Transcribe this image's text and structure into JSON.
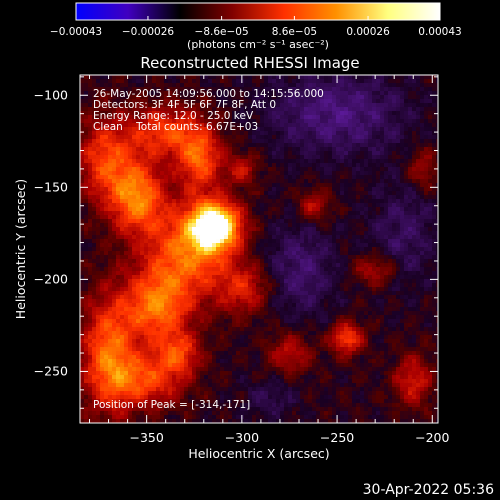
{
  "chart_data": {
    "type": "heatmap",
    "title": "Reconstructed RHESSI Image",
    "xlabel": "Heliocentric X (arcsec)",
    "ylabel": "Heliocentric Y (arcsec)",
    "xlim": [
      -385,
      -197
    ],
    "ylim": [
      -278,
      -89
    ],
    "x_ticks": [
      -350,
      -300,
      -250,
      -200
    ],
    "x_tick_labels": [
      "−350",
      "−300",
      "−250",
      "−200"
    ],
    "y_ticks": [
      -100,
      -150,
      -200,
      -250
    ],
    "y_tick_labels": [
      "−100",
      "−150",
      "−200",
      "−250"
    ],
    "colorbar": {
      "range": [
        -0.00043,
        0.00043
      ],
      "ticks": [
        -0.00043,
        -0.00026,
        -8.6e-05,
        8.6e-05,
        0.00026,
        0.00043
      ],
      "tick_labels": [
        "−0.00043",
        "−0.00026",
        "−8.6e−05",
        "8.6e−05",
        "0.00026",
        "0.00043"
      ],
      "unit_label": "(photons cm⁻² s⁻¹ asec⁻²)",
      "colors": [
        "#0000ff",
        "#4000c0",
        "#000000",
        "#800000",
        "#ff3000",
        "#ff9000",
        "#ffff80",
        "#ffffff"
      ]
    },
    "annotations": [
      "26-May-2005 14:09:56.000 to 14:15:56.000",
      "Detectors: 3F 4F 5F 6F 7F 8F, Att 0",
      "Energy Range: 12.0 - 25.0 keV",
      "Clean    Total counts: 6.67E+03"
    ],
    "peak_label": "Position of Peak = [-314,-171]",
    "peak_position": [
      -314,
      -171
    ],
    "sources": [
      {
        "x": -314,
        "y": -171,
        "amp": 1.0,
        "sx": 9,
        "sy": 9
      },
      {
        "x": -328,
        "y": -185,
        "amp": 0.55,
        "sx": 16,
        "sy": 18
      },
      {
        "x": -355,
        "y": -155,
        "amp": 0.6,
        "sx": 10,
        "sy": 14
      },
      {
        "x": -340,
        "y": -120,
        "amp": 0.45,
        "sx": 14,
        "sy": 10
      },
      {
        "x": -322,
        "y": -135,
        "amp": 0.5,
        "sx": 8,
        "sy": 12
      },
      {
        "x": -372,
        "y": -135,
        "amp": 0.45,
        "sx": 10,
        "sy": 16
      },
      {
        "x": -345,
        "y": -215,
        "amp": 0.55,
        "sx": 12,
        "sy": 14
      },
      {
        "x": -370,
        "y": -240,
        "amp": 0.55,
        "sx": 10,
        "sy": 22
      },
      {
        "x": -350,
        "y": -255,
        "amp": 0.45,
        "sx": 14,
        "sy": 10
      },
      {
        "x": -333,
        "y": -240,
        "amp": 0.4,
        "sx": 8,
        "sy": 8
      },
      {
        "x": -298,
        "y": -205,
        "amp": 0.35,
        "sx": 10,
        "sy": 10
      },
      {
        "x": -245,
        "y": -232,
        "amp": 0.5,
        "sx": 6,
        "sy": 6
      },
      {
        "x": -262,
        "y": -160,
        "amp": 0.3,
        "sx": 6,
        "sy": 6
      },
      {
        "x": -230,
        "y": -195,
        "amp": 0.3,
        "sx": 8,
        "sy": 6
      },
      {
        "x": -210,
        "y": -255,
        "amp": 0.35,
        "sx": 7,
        "sy": 10
      },
      {
        "x": -275,
        "y": -240,
        "amp": 0.3,
        "sx": 8,
        "sy": 8
      },
      {
        "x": -300,
        "y": -140,
        "amp": 0.3,
        "sx": 6,
        "sy": 6
      },
      {
        "x": -205,
        "y": -140,
        "amp": 0.25,
        "sx": 6,
        "sy": 8
      }
    ],
    "negative_sources": [
      {
        "x": -250,
        "y": -110,
        "amp": 0.3,
        "sx": 25,
        "sy": 16
      },
      {
        "x": -270,
        "y": -195,
        "amp": 0.25,
        "sx": 14,
        "sy": 18
      },
      {
        "x": -215,
        "y": -175,
        "amp": 0.2,
        "sx": 12,
        "sy": 20
      },
      {
        "x": -285,
        "y": -265,
        "amp": 0.15,
        "sx": 10,
        "sy": 8
      }
    ]
  },
  "timestamp": "30-Apr-2022 05:36"
}
